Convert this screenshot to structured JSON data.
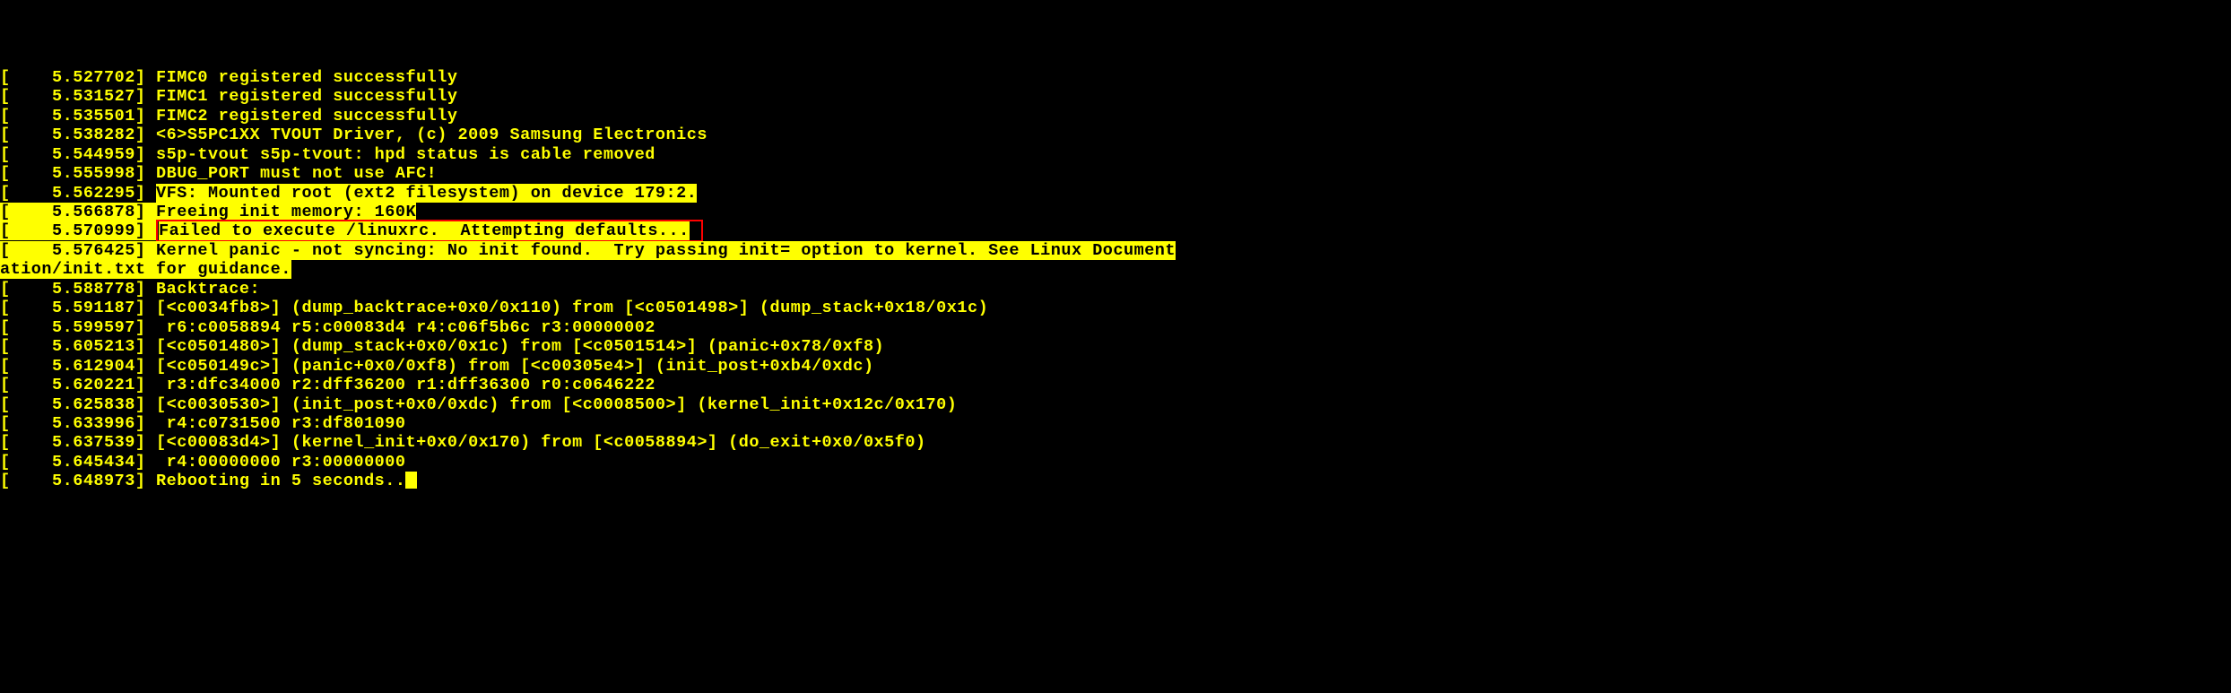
{
  "terminal": {
    "font_family": "Courier New, monospace",
    "font_size": 18.5,
    "font_weight": "bold",
    "text_color": "#ffff00",
    "background_color": "#000000",
    "highlight_bg": "#ffff00",
    "highlight_fg": "#000000",
    "red_box_color": "#ff0000"
  },
  "lines": [
    {
      "bracket": "[",
      "time": "    5.527702",
      "close": "] ",
      "msg": "FIMC0 registered successfully",
      "style": "plain",
      "partial_top": true
    },
    {
      "bracket": "[",
      "time": "    5.531527",
      "close": "] ",
      "msg": "FIMC1 registered successfully",
      "style": "plain"
    },
    {
      "bracket": "[",
      "time": "    5.535501",
      "close": "] ",
      "msg": "FIMC2 registered successfully",
      "style": "plain"
    },
    {
      "bracket": "[",
      "time": "    5.538282",
      "close": "] ",
      "msg": "<6>S5PC1XX TVOUT Driver, (c) 2009 Samsung Electronics",
      "style": "plain"
    },
    {
      "bracket": "[",
      "time": "    5.544959",
      "close": "] ",
      "msg": "s5p-tvout s5p-tvout: hpd status is cable removed",
      "style": "plain"
    },
    {
      "bracket": "[",
      "time": "    5.555998",
      "close": "] ",
      "msg": "DBUG_PORT must not use AFC!",
      "style": "plain"
    },
    {
      "bracket": "[",
      "time": "    5.562295",
      "close": "] ",
      "msg": "VFS: Mounted root (ext2 filesystem) on device 179:2.",
      "style": "msg_hl"
    },
    {
      "bracket": "[",
      "time": "    5.566878",
      "close": "] ",
      "msg": "Freeing init memory: 160K",
      "style": "full_hl_cursor"
    },
    {
      "bracket": "[",
      "time": "    5.570999",
      "close": "] ",
      "msg": "Failed to execute /linuxrc.  Attempting defaults...",
      "style": "full_hl_redbox"
    },
    {
      "bracket": "[",
      "time": "    5.576425",
      "close": "] ",
      "msg": "Kernel panic - not syncing: No init found.  Try passing init= option to kernel. See Linux Document",
      "style": "full_hl_wrap",
      "wrap": "ation/init.txt for guidance."
    },
    {
      "bracket": "[",
      "time": "    5.588778",
      "close": "] ",
      "msg": "Backtrace:",
      "style": "plain"
    },
    {
      "bracket": "[",
      "time": "    5.591187",
      "close": "] ",
      "msg": "[<c0034fb8>] (dump_backtrace+0x0/0x110) from [<c0501498>] (dump_stack+0x18/0x1c)",
      "style": "plain"
    },
    {
      "bracket": "[",
      "time": "    5.599597",
      "close": "] ",
      "msg": " r6:c0058894 r5:c00083d4 r4:c06f5b6c r3:00000002",
      "style": "plain"
    },
    {
      "bracket": "[",
      "time": "    5.605213",
      "close": "] ",
      "msg": "[<c0501480>] (dump_stack+0x0/0x1c) from [<c0501514>] (panic+0x78/0xf8)",
      "style": "plain"
    },
    {
      "bracket": "[",
      "time": "    5.612904",
      "close": "] ",
      "msg": "[<c050149c>] (panic+0x0/0xf8) from [<c00305e4>] (init_post+0xb4/0xdc)",
      "style": "plain"
    },
    {
      "bracket": "[",
      "time": "    5.620221",
      "close": "] ",
      "msg": " r3:dfc34000 r2:dff36200 r1:dff36300 r0:c0646222",
      "style": "plain"
    },
    {
      "bracket": "[",
      "time": "    5.625838",
      "close": "] ",
      "msg": "[<c0030530>] (init_post+0x0/0xdc) from [<c0008500>] (kernel_init+0x12c/0x170)",
      "style": "plain"
    },
    {
      "bracket": "[",
      "time": "    5.633996",
      "close": "] ",
      "msg": " r4:c0731500 r3:df801090",
      "style": "plain"
    },
    {
      "bracket": "[",
      "time": "    5.637539",
      "close": "] ",
      "msg": "[<c00083d4>] (kernel_init+0x0/0x170) from [<c0058894>] (do_exit+0x0/0x5f0)",
      "style": "plain"
    },
    {
      "bracket": "[",
      "time": "    5.645434",
      "close": "] ",
      "msg": " r4:00000000 r3:00000000",
      "style": "plain"
    },
    {
      "bracket": "[",
      "time": "    5.648973",
      "close": "] ",
      "msg": "Rebooting in 5 seconds..",
      "style": "plain_cursor",
      "partial_bottom": true
    }
  ]
}
